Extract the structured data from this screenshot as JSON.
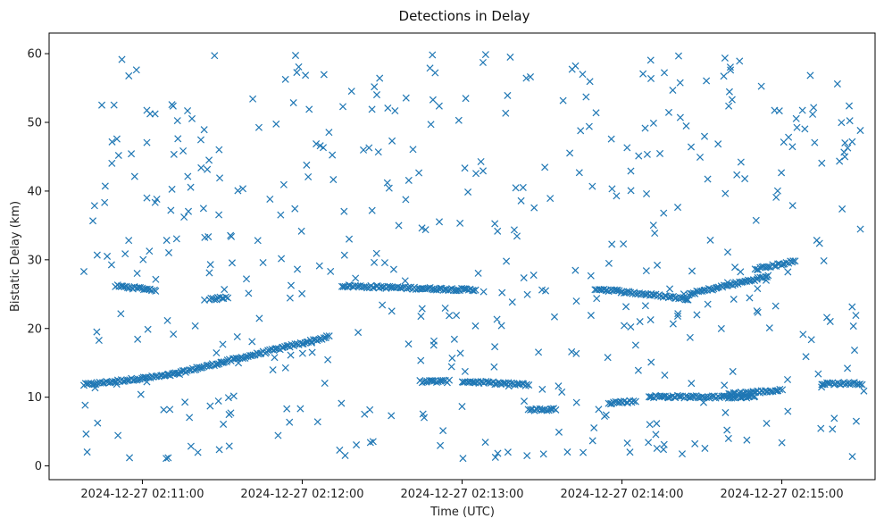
{
  "chart_data": {
    "type": "scatter",
    "title": "Detections in Delay",
    "xlabel": "Time (UTC)",
    "ylabel": "Bistatic Delay (km)",
    "marker": "x",
    "marker_color": "#1f77b4",
    "x_is_time": true,
    "xlim": [
      "2024-12-27 02:10:25",
      "2024-12-27 02:15:35"
    ],
    "ylim": [
      -2,
      63
    ],
    "x_ticks": [
      {
        "value": "2024-12-27 02:11:00",
        "label": "2024-12-27 02:11:00"
      },
      {
        "value": "2024-12-27 02:12:00",
        "label": "2024-12-27 02:12:00"
      },
      {
        "value": "2024-12-27 02:13:00",
        "label": "2024-12-27 02:13:00"
      },
      {
        "value": "2024-12-27 02:14:00",
        "label": "2024-12-27 02:14:00"
      },
      {
        "value": "2024-12-27 02:15:00",
        "label": "2024-12-27 02:15:00"
      }
    ],
    "y_ticks": [
      0,
      10,
      20,
      30,
      40,
      50,
      60
    ],
    "grid": false,
    "legend": "none",
    "series": [
      {
        "marker": "x",
        "x": [],
        "y": [],
        "track_segments": [
          {
            "t0": "2024-12-27 02:10:38",
            "t1": "2024-12-27 02:11:10",
            "y0": 11.8,
            "y1": 13.2
          },
          {
            "t0": "2024-12-27 02:11:10",
            "t1": "2024-12-27 02:12:10",
            "y0": 13.2,
            "y1": 18.8
          },
          {
            "t0": "2024-12-27 02:10:50",
            "t1": "2024-12-27 02:11:05",
            "y0": 26.2,
            "y1": 25.6
          },
          {
            "t0": "2024-12-27 02:11:25",
            "t1": "2024-12-27 02:11:32",
            "y0": 24.2,
            "y1": 24.6
          },
          {
            "t0": "2024-12-27 02:12:15",
            "t1": "2024-12-27 02:13:05",
            "y0": 26.2,
            "y1": 25.6
          },
          {
            "t0": "2024-12-27 02:12:45",
            "t1": "2024-12-27 02:12:55",
            "y0": 12.3,
            "y1": 12.3
          },
          {
            "t0": "2024-12-27 02:13:00",
            "t1": "2024-12-27 02:13:25",
            "y0": 12.3,
            "y1": 11.8
          },
          {
            "t0": "2024-12-27 02:13:25",
            "t1": "2024-12-27 02:13:35",
            "y0": 8.2,
            "y1": 8.2
          },
          {
            "t0": "2024-12-27 02:13:50",
            "t1": "2024-12-27 02:14:25",
            "y0": 25.8,
            "y1": 24.3
          },
          {
            "t0": "2024-12-27 02:13:55",
            "t1": "2024-12-27 02:14:05",
            "y0": 9.2,
            "y1": 9.4
          },
          {
            "t0": "2024-12-27 02:14:10",
            "t1": "2024-12-27 02:14:50",
            "y0": 10.1,
            "y1": 10.0
          },
          {
            "t0": "2024-12-27 02:14:25",
            "t1": "2024-12-27 02:14:55",
            "y0": 25.0,
            "y1": 27.6
          },
          {
            "t0": "2024-12-27 02:14:50",
            "t1": "2024-12-27 02:15:05",
            "y0": 28.6,
            "y1": 29.8
          },
          {
            "t0": "2024-12-27 02:14:40",
            "t1": "2024-12-27 02:15:00",
            "y0": 10.5,
            "y1": 11.0
          },
          {
            "t0": "2024-12-27 02:15:15",
            "t1": "2024-12-27 02:15:30",
            "y0": 12.0,
            "y1": 12.0
          }
        ],
        "noise_count": 480
      }
    ]
  }
}
